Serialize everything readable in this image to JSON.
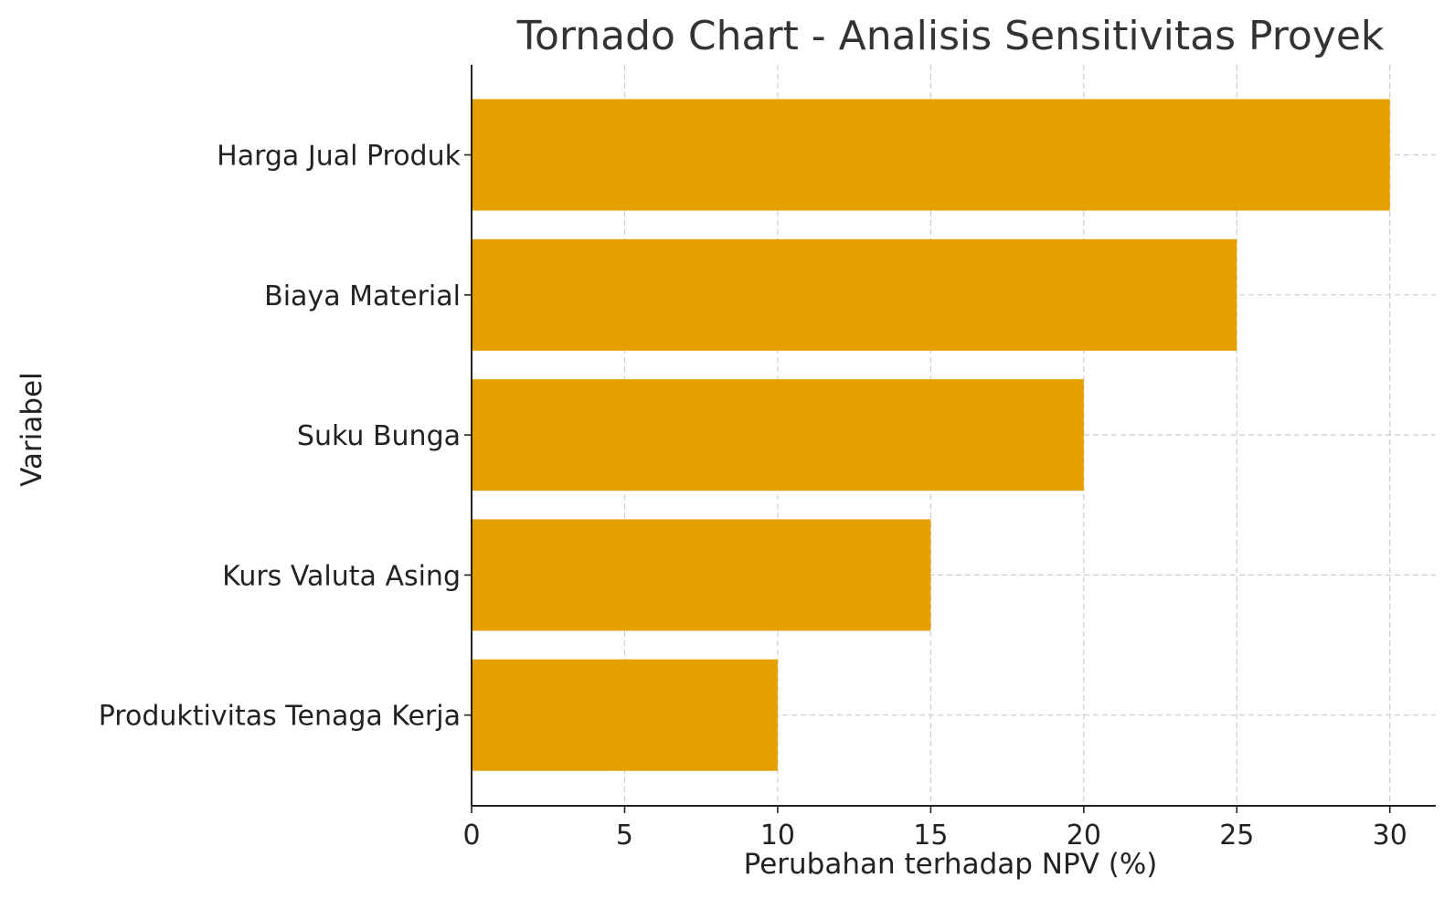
{
  "chart_data": {
    "type": "bar",
    "orientation": "horizontal",
    "title": "Tornado Chart - Analisis Sensitivitas Proyek",
    "xlabel": "Perubahan terhadap NPV (%)",
    "ylabel": "Variabel",
    "categories": [
      "Harga Jual Produk",
      "Biaya Material",
      "Suku Bunga",
      "Kurs Valuta Asing",
      "Produktivitas Tenaga Kerja"
    ],
    "values": [
      30,
      25,
      20,
      15,
      10
    ],
    "xlim": [
      0,
      31.5
    ],
    "xticks": [
      0,
      5,
      10,
      15,
      20,
      25,
      30
    ],
    "grid": true,
    "bar_color": "#E5A000"
  }
}
